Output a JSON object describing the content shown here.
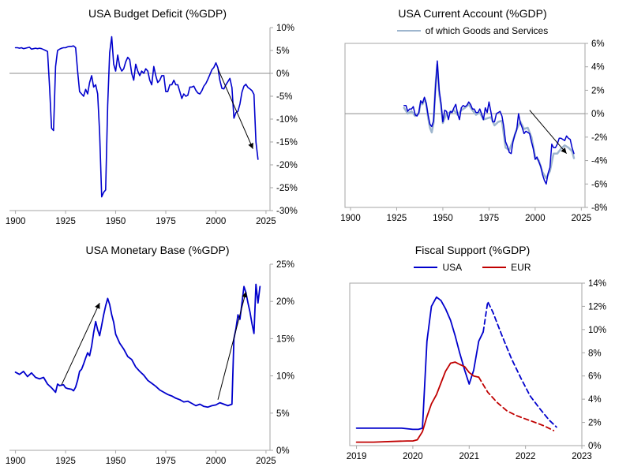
{
  "page": {
    "background": "#ffffff"
  },
  "colors": {
    "line_blue": "#0000CC",
    "line_light_blue": "#9EB6CE",
    "line_red": "#C00000",
    "axis_gray": "#A6A6A6",
    "zero_line_gray": "#8C8C8C",
    "arrow_black": "#000000"
  },
  "chart_data": [
    {
      "type": "line",
      "title": "USA Budget Deficit (%GDP)",
      "xlim": [
        1897,
        2027
      ],
      "ylim": [
        -30,
        10
      ],
      "grid": false,
      "border": false,
      "zero_line": true,
      "legend_position": "none",
      "xticks": [
        {
          "v": 1900,
          "label": "1900"
        },
        {
          "v": 1925,
          "label": "1925"
        },
        {
          "v": 1950,
          "label": "1950"
        },
        {
          "v": 1975,
          "label": "1975"
        },
        {
          "v": 2000,
          "label": "2000"
        },
        {
          "v": 2025,
          "label": "2025"
        }
      ],
      "yticks": [
        {
          "v": 10,
          "label": "10%"
        },
        {
          "v": 5,
          "label": "5%"
        },
        {
          "v": 0,
          "label": "0%"
        },
        {
          "v": -5,
          "label": "-5%"
        },
        {
          "v": -10,
          "label": "-10%"
        },
        {
          "v": -15,
          "label": "-15%"
        },
        {
          "v": -20,
          "label": "-20%"
        },
        {
          "v": -25,
          "label": "-25%"
        },
        {
          "v": -30,
          "label": "-30%"
        }
      ],
      "legend": [],
      "series": [
        {
          "name": "budget-deficit",
          "color": "#0000CC",
          "width": 1.6,
          "dash": "",
          "x_start": 1900,
          "y": [
            5.6,
            5.6,
            5.5,
            5.6,
            5.4,
            5.5,
            5.6,
            5.7,
            5.3,
            5.4,
            5.5,
            5.4,
            5.5,
            5.4,
            5.2,
            5.0,
            4.8,
            -3.0,
            -12.0,
            -12.5,
            1.5,
            5.0,
            5.3,
            5.5,
            5.6,
            5.6,
            5.8,
            5.9,
            5.9,
            6.0,
            5.6,
            0.5,
            -4.0,
            -4.5,
            -5.0,
            -3.5,
            -4.5,
            -2.0,
            -0.5,
            -3.0,
            -2.5,
            -4.5,
            -13.0,
            -27.0,
            -26.0,
            -25.5,
            -7.0,
            4.5,
            8.0,
            2.0,
            0.5,
            4.0,
            1.5,
            0.5,
            1.0,
            2.5,
            3.5,
            3.0,
            0.0,
            -1.5,
            2.0,
            0.5,
            -0.5,
            0.5,
            0.0,
            1.0,
            0.5,
            -1.5,
            -2.5,
            1.5,
            -0.5,
            -2.0,
            -1.5,
            -0.5,
            -0.5,
            -4.0,
            -4.0,
            -2.5,
            -2.5,
            -1.5,
            -2.5,
            -2.5,
            -4.0,
            -5.5,
            -4.5,
            -5.0,
            -4.8,
            -3.0,
            -3.0,
            -2.8,
            -3.7,
            -4.3,
            -4.5,
            -3.8,
            -2.8,
            -2.2,
            -1.3,
            -0.3,
            0.8,
            1.3,
            2.3,
            1.2,
            -1.5,
            -3.3,
            -3.4,
            -2.5,
            -1.8,
            -1.1,
            -3.1,
            -9.8,
            -8.6,
            -8.3,
            -6.7,
            -4.1,
            -2.8,
            -2.4,
            -3.1,
            -3.4,
            -3.8,
            -4.6,
            -15.0,
            -18.8
          ]
        }
      ],
      "arrows": [
        {
          "from": [
            2001,
            1.0
          ],
          "to": [
            2018.5,
            -16.5
          ]
        }
      ]
    },
    {
      "type": "line",
      "title": "USA Current Account (%GDP)",
      "xlim": [
        1897,
        2027
      ],
      "ylim": [
        -8,
        6
      ],
      "grid": false,
      "border": true,
      "zero_line": true,
      "legend_position": "top",
      "xticks": [
        {
          "v": 1900,
          "label": "1900"
        },
        {
          "v": 1925,
          "label": "1925"
        },
        {
          "v": 1950,
          "label": "1950"
        },
        {
          "v": 1975,
          "label": "1975"
        },
        {
          "v": 2000,
          "label": "2000"
        },
        {
          "v": 2025,
          "label": "2025"
        }
      ],
      "yticks": [
        {
          "v": 6,
          "label": "6%"
        },
        {
          "v": 4,
          "label": "4%"
        },
        {
          "v": 2,
          "label": "2%"
        },
        {
          "v": 0,
          "label": "0%"
        },
        {
          "v": -2,
          "label": "-2%"
        },
        {
          "v": -4,
          "label": "-4%"
        },
        {
          "v": -6,
          "label": "-6%"
        },
        {
          "v": -8,
          "label": "-8%"
        }
      ],
      "legend": [
        {
          "label": "of which Goods and Services",
          "color": "#9EB6CE"
        }
      ],
      "series": [
        {
          "name": "goods-and-services",
          "color": "#9EB6CE",
          "width": 2.5,
          "dash": "",
          "x": [
            1929,
            1931,
            1933,
            1935,
            1937,
            1938,
            1939,
            1940,
            1941,
            1942,
            1943,
            1944,
            1945,
            1946,
            1947,
            1948,
            1949,
            1950,
            1952,
            1954,
            1956,
            1958,
            1960,
            1962,
            1964,
            1966,
            1968,
            1970,
            1972,
            1974,
            1976,
            1978,
            1980,
            1982,
            1984,
            1986,
            1988,
            1990,
            1992,
            1994,
            1996,
            1998,
            2000,
            2002,
            2004,
            2006,
            2008,
            2010,
            2012,
            2014,
            2016,
            2018,
            2020,
            2021
          ],
          "y": [
            0.5,
            0.0,
            0.2,
            -0.2,
            0.0,
            1.0,
            0.8,
            1.3,
            0.8,
            -0.3,
            -1.2,
            -1.6,
            -0.8,
            2.4,
            4.2,
            1.7,
            0.7,
            -0.8,
            0.0,
            0.1,
            0.3,
            -0.1,
            0.3,
            0.5,
            0.8,
            0.3,
            -0.1,
            0.1,
            -0.5,
            -0.4,
            -0.3,
            -1.0,
            -0.7,
            -0.6,
            -2.9,
            -3.1,
            -2.3,
            -1.3,
            -0.7,
            -1.3,
            -1.2,
            -2.0,
            -3.7,
            -4.0,
            -5.0,
            -5.5,
            -4.9,
            -3.4,
            -3.4,
            -3.0,
            -2.7,
            -2.9,
            -3.2,
            -3.8
          ]
        },
        {
          "name": "current-account-total",
          "color": "#0000CC",
          "width": 1.5,
          "dash": "",
          "x_start": 1929,
          "y": [
            0.7,
            0.7,
            0.2,
            0.4,
            0.4,
            0.6,
            -0.1,
            -0.2,
            0.1,
            1.1,
            0.9,
            1.4,
            0.9,
            -0.1,
            -0.9,
            -1.1,
            -0.6,
            2.2,
            4.5,
            2.0,
            0.9,
            -0.7,
            0.3,
            0.2,
            -0.5,
            0.2,
            0.1,
            0.5,
            0.8,
            0.0,
            -0.5,
            0.5,
            0.7,
            0.6,
            0.7,
            1.0,
            0.8,
            0.4,
            0.4,
            0.1,
            0.1,
            0.4,
            0.0,
            -0.5,
            0.5,
            0.1,
            1.0,
            0.2,
            -0.7,
            -0.7,
            0.0,
            0.1,
            0.2,
            -0.2,
            -1.1,
            -2.4,
            -2.8,
            -3.3,
            -3.4,
            -2.4,
            -1.8,
            -1.4,
            0.0,
            -0.8,
            -1.2,
            -1.7,
            -1.5,
            -1.6,
            -1.7,
            -2.4,
            -3.0,
            -3.9,
            -3.7,
            -4.1,
            -4.5,
            -5.2,
            -5.7,
            -6.0,
            -5.1,
            -4.6,
            -2.6,
            -2.9,
            -2.9,
            -2.6,
            -2.1,
            -2.1,
            -2.2,
            -2.3,
            -1.9,
            -2.1,
            -2.2,
            -2.9,
            -3.4
          ]
        }
      ],
      "arrows": [
        {
          "from": [
            1997,
            0.3
          ],
          "to": [
            2017,
            -3.4
          ]
        }
      ]
    },
    {
      "type": "line",
      "title": "USA Monetary Base (%GDP)",
      "xlim": [
        1897,
        2027
      ],
      "ylim": [
        0,
        25
      ],
      "grid": false,
      "border": false,
      "zero_line": false,
      "legend_position": "none",
      "xticks": [
        {
          "v": 1900,
          "label": "1900"
        },
        {
          "v": 1925,
          "label": "1925"
        },
        {
          "v": 1950,
          "label": "1950"
        },
        {
          "v": 1975,
          "label": "1975"
        },
        {
          "v": 2000,
          "label": "2000"
        },
        {
          "v": 2025,
          "label": "2025"
        }
      ],
      "yticks": [
        {
          "v": 25,
          "label": "25%"
        },
        {
          "v": 20,
          "label": "20%"
        },
        {
          "v": 15,
          "label": "15%"
        },
        {
          "v": 10,
          "label": "10%"
        },
        {
          "v": 5,
          "label": "5%"
        },
        {
          "v": 0,
          "label": "0%"
        }
      ],
      "legend": [],
      "series": [
        {
          "name": "monetary-base",
          "color": "#0000CC",
          "width": 1.8,
          "dash": "",
          "x": [
            1900,
            1902,
            1904,
            1906,
            1908,
            1910,
            1912,
            1914,
            1916,
            1918,
            1920,
            1921,
            1922,
            1924,
            1925,
            1926,
            1928,
            1929,
            1930,
            1931,
            1932,
            1933,
            1934,
            1935,
            1936,
            1937,
            1938,
            1939,
            1940,
            1941,
            1942,
            1943,
            1944,
            1945,
            1946,
            1947,
            1948,
            1949,
            1950,
            1952,
            1954,
            1956,
            1958,
            1960,
            1962,
            1964,
            1966,
            1968,
            1970,
            1972,
            1974,
            1976,
            1978,
            1980,
            1982,
            1984,
            1986,
            1988,
            1990,
            1992,
            1994,
            1996,
            1998,
            2000,
            2002,
            2004,
            2006,
            2008,
            2009,
            2010,
            2011,
            2012,
            2013,
            2014,
            2015,
            2016,
            2017,
            2018,
            2019,
            2020,
            2021,
            2022
          ],
          "y": [
            10.5,
            10.2,
            10.6,
            9.9,
            10.4,
            9.8,
            9.6,
            9.8,
            8.9,
            8.4,
            7.8,
            8.9,
            8.7,
            8.8,
            8.4,
            8.3,
            8.2,
            8.0,
            8.5,
            9.4,
            10.6,
            10.9,
            11.6,
            12.4,
            13.1,
            12.7,
            14.0,
            15.8,
            17.3,
            16.2,
            15.4,
            16.8,
            18.2,
            19.4,
            20.4,
            19.6,
            18.2,
            17.2,
            15.6,
            14.4,
            13.6,
            12.6,
            12.2,
            11.2,
            10.6,
            10.1,
            9.4,
            9.0,
            8.6,
            8.1,
            7.8,
            7.5,
            7.3,
            7.0,
            6.8,
            6.5,
            6.6,
            6.3,
            6.0,
            6.2,
            5.9,
            5.8,
            6.0,
            6.1,
            6.4,
            6.2,
            6.0,
            6.2,
            15.0,
            16.3,
            18.2,
            17.6,
            19.8,
            22.0,
            21.2,
            19.8,
            18.6,
            17.0,
            15.7,
            22.3,
            19.8,
            22.0
          ]
        }
      ],
      "arrows": [
        {
          "from": [
            1923,
            8.8
          ],
          "to": [
            1942,
            19.8
          ]
        },
        {
          "from": [
            2001,
            6.8
          ],
          "to": [
            2015,
            21.3
          ]
        }
      ]
    },
    {
      "type": "line",
      "title": "Fiscal Support (%GDP)",
      "xlim": [
        2018.88,
        2023
      ],
      "ylim": [
        0,
        14
      ],
      "grid": false,
      "border": true,
      "zero_line": false,
      "legend_position": "top",
      "xticks": [
        {
          "v": 2019,
          "label": "2019"
        },
        {
          "v": 2020,
          "label": "2020"
        },
        {
          "v": 2021,
          "label": "2021"
        },
        {
          "v": 2022,
          "label": "2022"
        },
        {
          "v": 2023,
          "label": "2023"
        }
      ],
      "yticks": [
        {
          "v": 14,
          "label": "14%"
        },
        {
          "v": 12,
          "label": "12%"
        },
        {
          "v": 10,
          "label": "10%"
        },
        {
          "v": 8,
          "label": "8%"
        },
        {
          "v": 6,
          "label": "6%"
        },
        {
          "v": 4,
          "label": "4%"
        },
        {
          "v": 2,
          "label": "2%"
        },
        {
          "v": 0,
          "label": "0%"
        }
      ],
      "legend": [
        {
          "label": "USA",
          "color": "#0000CC"
        },
        {
          "label": "EUR",
          "color": "#C00000"
        }
      ],
      "series": [
        {
          "name": "usa-actual",
          "color": "#0000CC",
          "width": 1.8,
          "dash": "",
          "x": [
            2019.0,
            2019.2,
            2019.4,
            2019.6,
            2019.8,
            2020.0,
            2020.1,
            2020.17,
            2020.25,
            2020.33,
            2020.42,
            2020.5,
            2020.58,
            2020.67,
            2020.75,
            2020.83,
            2020.92,
            2021.0,
            2021.08,
            2021.17,
            2021.25
          ],
          "y": [
            1.5,
            1.5,
            1.5,
            1.5,
            1.5,
            1.4,
            1.4,
            1.5,
            9.0,
            12.0,
            12.8,
            12.5,
            11.8,
            10.8,
            9.5,
            8.0,
            6.5,
            5.3,
            6.5,
            9.0,
            9.8
          ]
        },
        {
          "name": "usa-projection",
          "color": "#0000CC",
          "width": 1.8,
          "dash": "6,4",
          "x": [
            2021.25,
            2021.33,
            2021.42,
            2021.58,
            2021.75,
            2021.92,
            2022.08,
            2022.25,
            2022.42,
            2022.55
          ],
          "y": [
            9.8,
            12.4,
            11.5,
            9.5,
            7.5,
            5.8,
            4.3,
            3.2,
            2.2,
            1.6
          ]
        },
        {
          "name": "eur-actual",
          "color": "#C00000",
          "width": 1.8,
          "dash": "",
          "x": [
            2019.0,
            2019.3,
            2019.6,
            2019.9,
            2020.0,
            2020.08,
            2020.17,
            2020.25,
            2020.33,
            2020.42,
            2020.5,
            2020.58,
            2020.67,
            2020.75,
            2020.83,
            2020.92,
            2021.0,
            2021.08,
            2021.17
          ],
          "y": [
            0.3,
            0.3,
            0.35,
            0.4,
            0.4,
            0.5,
            1.2,
            2.5,
            3.6,
            4.4,
            5.4,
            6.4,
            7.1,
            7.2,
            7.0,
            6.8,
            6.3,
            6.0,
            5.9
          ]
        },
        {
          "name": "eur-projection",
          "color": "#C00000",
          "width": 1.8,
          "dash": "6,4",
          "x": [
            2021.17,
            2021.33,
            2021.5,
            2021.67,
            2021.83,
            2022.0,
            2022.17,
            2022.33,
            2022.5
          ],
          "y": [
            5.9,
            4.6,
            3.7,
            3.0,
            2.6,
            2.3,
            2.0,
            1.7,
            1.3
          ]
        }
      ],
      "arrows": []
    }
  ]
}
